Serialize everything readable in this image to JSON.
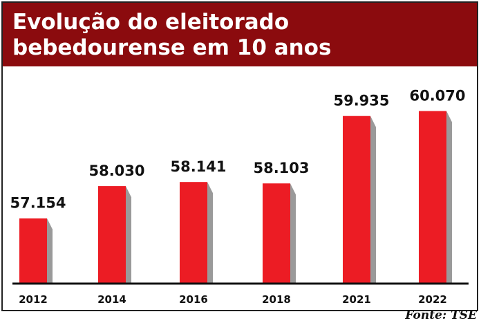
{
  "chart_data": {
    "type": "bar",
    "title": "Evolução do eleitorado bebedourense em 10 anos",
    "categories": [
      "2012",
      "2014",
      "2016",
      "2018",
      "2021",
      "2022"
    ],
    "values": [
      57154,
      58030,
      58141,
      58103,
      59935,
      60070
    ],
    "value_labels": [
      "57.154",
      "58.030",
      "58.141",
      "58.103",
      "59.935",
      "60.070"
    ],
    "ylim": [
      55400,
      60550
    ],
    "grid": false,
    "xlabel": "",
    "ylabel": "",
    "source": "Fonte: TSE",
    "colors": {
      "bar": "#ec1c24",
      "bar_shadow": "#9a9a9a",
      "header": "#8b0b0e",
      "title_text": "#ffffff",
      "axis": "#111111"
    }
  }
}
